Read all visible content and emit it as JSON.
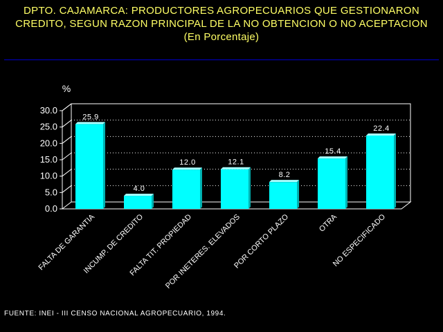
{
  "header": {
    "line1": "DPTO. CAJAMARCA: PRODUCTORES AGROPECUARIOS QUE GESTIONARON",
    "line2": "CREDITO, SEGUN RAZON PRINCIPAL DE LA NO OBTENCION O NO ACEPTACION",
    "line3": "(En Porcentaje)"
  },
  "source": "FUENTE: INEI - III CENSO NACIONAL AGROPECUARIO, 1994.",
  "colors": {
    "title": "#ffff66",
    "bar": "#00ffff",
    "rule": "#0000cc",
    "axis": "#ffffff",
    "grid": "#ffffff"
  },
  "chart_data": {
    "type": "bar",
    "ylabel": "%",
    "ylim": [
      0,
      30
    ],
    "yticks": [
      "0.0",
      "5.0",
      "10.0",
      "15.0",
      "20.0",
      "25.0",
      "30.0"
    ],
    "grid": "dotted horizontal",
    "categories": [
      "FALTA DE GARANTIA",
      "INCUMP. DE CREDITO",
      "FALTA TIT. PROPIEDAD",
      "POR INETERES. ELEVADOS",
      "POR CORTO PLAZO",
      "OTRA",
      "NO ESPECIFICADO"
    ],
    "values": [
      25.9,
      4.0,
      12.0,
      12.1,
      8.2,
      15.4,
      22.4
    ],
    "value_labels": [
      "25.9",
      "4.0",
      "12.0",
      "12.1",
      "8.2",
      "15.4",
      "22.4"
    ]
  }
}
